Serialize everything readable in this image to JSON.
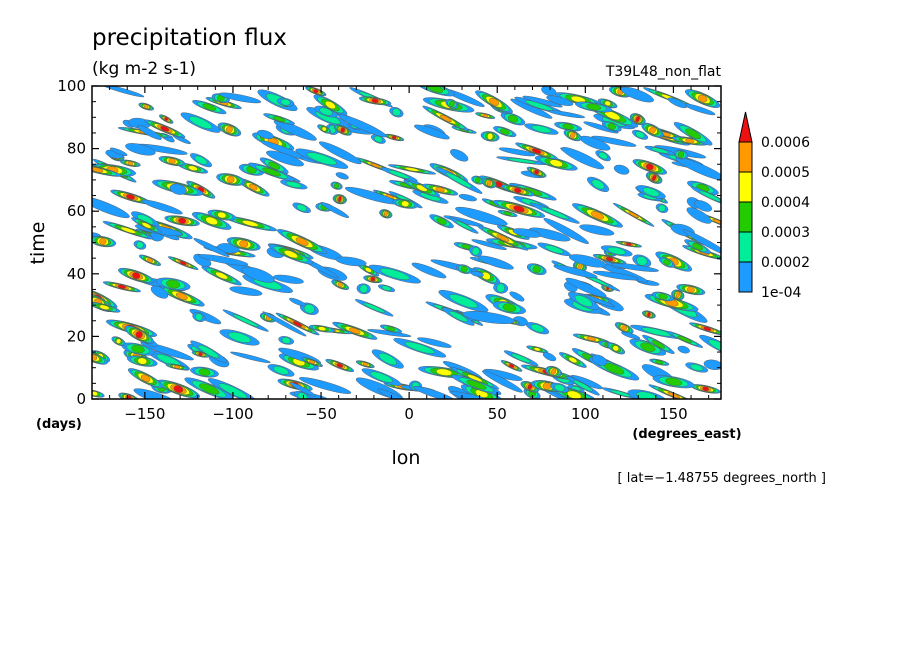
{
  "chart_data": {
    "type": "heatmap",
    "title": "precipitation flux",
    "subtitle": "(kg m-2 s-1)",
    "run_label": "T39L48_non_flat",
    "xlabel": "lon",
    "x_units": "(degrees_east)",
    "ylabel": "time",
    "y_units": "(days)",
    "xlim": [
      -180,
      177
    ],
    "ylim": [
      0,
      100
    ],
    "x_ticks": [
      -150,
      -100,
      -50,
      0,
      50,
      100,
      150
    ],
    "x_tick_labels": [
      "−150",
      "−100",
      "−50",
      "0",
      "50",
      "100",
      "150"
    ],
    "y_ticks": [
      0,
      20,
      40,
      60,
      80,
      100
    ],
    "y_tick_labels": [
      "0",
      "20",
      "40",
      "60",
      "80",
      "100"
    ],
    "footnote": "[ lat=−1.48755 degrees_north ]",
    "colorbar": {
      "levels": [
        0.0001,
        0.0002,
        0.0003,
        0.0004,
        0.0005,
        0.0006
      ],
      "level_labels": [
        "1e-04",
        "0.0002",
        "0.0003",
        "0.0004",
        "0.0005",
        "0.0006"
      ],
      "colors": [
        "#1e9bff",
        "#00ee9a",
        "#22cc00",
        "#ffff00",
        "#ff9900",
        "#ee1111"
      ],
      "extend": "max"
    },
    "grid": false,
    "description_of_field": "Intermittent eastward-tilted streaks of precipitation flux over longitude and time; most area below 1e-04 (white)."
  }
}
